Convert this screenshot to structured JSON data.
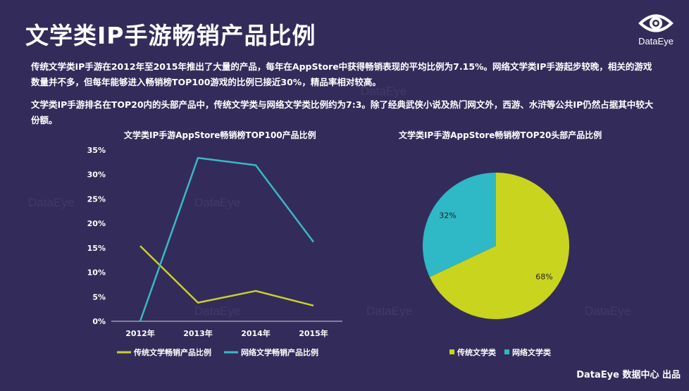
{
  "page": {
    "title": "文学类IP手游畅销产品比例",
    "logo_text": "DataEye",
    "para1": "传统文学类IP手游在2012年至2015年推出了大量的产品，每年在AppStore中获得畅销表现的平均比例为7.15%。网络文学类IP手游起步较晚，相关的游戏数量并不多，但每年能够进入畅销榜TOP100游戏的比例已接近30%，精品率相对较高。",
    "para2": "文学类IP手游排名在TOP20内的头部产品中，传统文学类与网络文学类比例约为7:3。除了经典武侠小说及热门网文外，西游、水浒等公共IP仍然占据其中较大份额。",
    "watermark": "DataEye",
    "footer": "DataEye 数据中心 出品"
  },
  "chart_data": [
    {
      "type": "line",
      "title": "文学类IP手游AppStore畅销榜TOP100产品比例",
      "categories": [
        "2012年",
        "2013年",
        "2014年",
        "2015年"
      ],
      "y_ticks": [
        "0%",
        "5%",
        "10%",
        "15%",
        "20%",
        "25%",
        "30%",
        "35%"
      ],
      "ylim": [
        0,
        35
      ],
      "legend_position": "bottom",
      "series": [
        {
          "name": "传统文学畅销产品比例",
          "color": "#c9cf2e",
          "values": [
            15.4,
            3.8,
            6.2,
            3.2
          ]
        },
        {
          "name": "网络文学畅销产品比例",
          "color": "#3bb8c4",
          "values": [
            0,
            33.4,
            31.9,
            16.2
          ]
        }
      ]
    },
    {
      "type": "pie",
      "title": "文学类IP手游AppStore畅销榜TOP20头部产品比例",
      "legend_position": "bottom",
      "slices": [
        {
          "name": "传统文学类",
          "value": 68,
          "label": "68%",
          "color": "#c9d41e"
        },
        {
          "name": "网络文学类",
          "value": 32,
          "label": "32%",
          "color": "#2fb8c6"
        }
      ]
    }
  ]
}
